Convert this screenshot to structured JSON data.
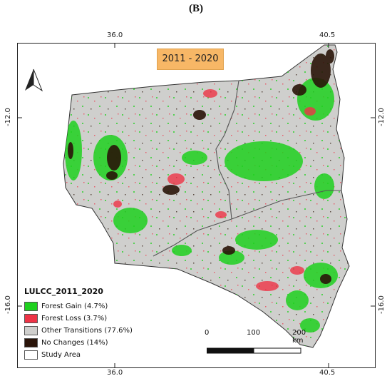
{
  "panel_label": "(B)",
  "period": "2011 - 2020",
  "axis_labels": {
    "top_left": "36.0",
    "top_right": "40.5",
    "bottom_left": "36.0",
    "bottom_right": "40.5",
    "left_upper": "-12.0",
    "left_lower": "-16.0",
    "right_upper": "-12.0",
    "right_lower": "-16.0"
  },
  "legend": {
    "title": "LULCC_2011_2020",
    "items": [
      {
        "label": "Forest Gain (4.7%)",
        "color": "#1fd11f"
      },
      {
        "label": "Forest Loss (3.7%)",
        "color": "#ee3346"
      },
      {
        "label": "Other Transitions (77.6%)",
        "color": "#cfcfcd"
      },
      {
        "label": "No Changes (14%)",
        "color": "#2a1409"
      },
      {
        "label": "Study Area",
        "color": "#ffffff"
      }
    ]
  },
  "scale_bar": {
    "labels": [
      "0",
      "100",
      "200 km"
    ]
  },
  "colors": {
    "land": "#cfcfcd",
    "boundary": "#555555"
  },
  "icons": {
    "north_arrow": "north-arrow-icon"
  }
}
